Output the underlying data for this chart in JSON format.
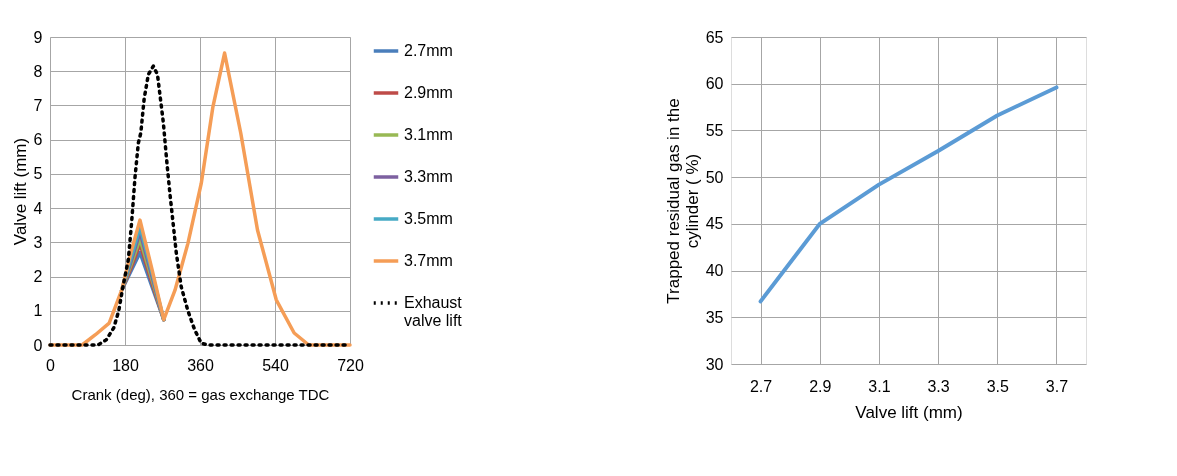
{
  "chart_data": [
    {
      "type": "line",
      "xlabel": "Crank (deg), 360 = gas exchange TDC",
      "ylabel": "Valve lift (mm)",
      "xlim": [
        0,
        720
      ],
      "xticks": [
        0,
        180,
        360,
        540,
        720
      ],
      "ylim": [
        0,
        9
      ],
      "yticks": [
        0,
        1,
        2,
        3,
        4,
        5,
        6,
        7,
        8,
        9
      ],
      "grid": true,
      "legend": "right",
      "line_style": "solid",
      "series": [
        {
          "name": "2.7mm",
          "color": "#4a7ebb",
          "x": [
            172,
            196,
            216,
            245,
            273
          ],
          "values": [
            1.6,
            2.2,
            2.7,
            1.7,
            0.74
          ]
        },
        {
          "name": "2.9mm",
          "color": "#be4b48",
          "x": [
            172,
            196,
            216,
            245,
            273
          ],
          "values": [
            1.6,
            2.3,
            2.95,
            1.8,
            0.74
          ]
        },
        {
          "name": "3.1mm",
          "color": "#98b954",
          "x": [
            172,
            196,
            216,
            245,
            273
          ],
          "values": [
            1.6,
            2.4,
            3.1,
            1.9,
            0.74
          ]
        },
        {
          "name": "3.3mm",
          "color": "#7d60a0",
          "x": [
            172,
            196,
            216,
            245,
            273
          ],
          "values": [
            1.6,
            2.5,
            3.3,
            2.0,
            0.74
          ]
        },
        {
          "name": "3.5mm",
          "color": "#46aac5",
          "x": [
            172,
            196,
            216,
            245,
            273
          ],
          "values": [
            1.6,
            2.6,
            3.45,
            2.1,
            0.74
          ]
        },
        {
          "name": "3.7mm",
          "color": "#f59d56",
          "x": [
            0,
            40,
            77,
            109,
            142,
            172,
            196,
            216,
            245,
            273,
            300,
            331,
            363,
            391,
            419,
            458,
            498,
            543,
            586,
            621,
            660,
            720
          ],
          "values": [
            0,
            0,
            0,
            0.3,
            0.64,
            1.6,
            2.78,
            3.65,
            2.2,
            0.74,
            1.6,
            2.97,
            4.72,
            6.96,
            8.53,
            6.18,
            3.36,
            1.32,
            0.35,
            0,
            0,
            0
          ]
        },
        {
          "name": "Exhaust valve lift",
          "color": "#000000",
          "line_style": "dotted",
          "x": [
            0,
            40,
            80,
            115,
            135,
            153,
            165,
            175,
            188,
            196,
            204,
            212,
            218,
            226,
            236,
            248,
            258,
            265,
            272,
            280,
            288,
            296,
            303,
            315,
            331,
            347,
            363,
            380,
            720
          ],
          "values": [
            0,
            0,
            0,
            0,
            0.15,
            0.5,
            1.0,
            1.7,
            2.5,
            3.6,
            4.9,
            5.9,
            6.2,
            7.2,
            7.9,
            8.15,
            7.9,
            7.2,
            6.5,
            5.4,
            4.4,
            3.5,
            2.7,
            1.7,
            1.0,
            0.45,
            0.05,
            0,
            0
          ]
        }
      ]
    },
    {
      "type": "line",
      "xlabel": "Valve lift (mm)",
      "ylabel": "Trapped residual gas in the cylinder ( %)",
      "categories": [
        "2.7",
        "2.9",
        "3.1",
        "3.3",
        "3.5",
        "3.7"
      ],
      "values": [
        36.7,
        45,
        49.2,
        52.8,
        56.6,
        59.6
      ],
      "color": "#5b9bd5",
      "ylim": [
        30,
        65
      ],
      "yticks": [
        30,
        35,
        40,
        45,
        50,
        55,
        60,
        65
      ],
      "grid": true,
      "legend": false,
      "line_style": "solid"
    }
  ]
}
